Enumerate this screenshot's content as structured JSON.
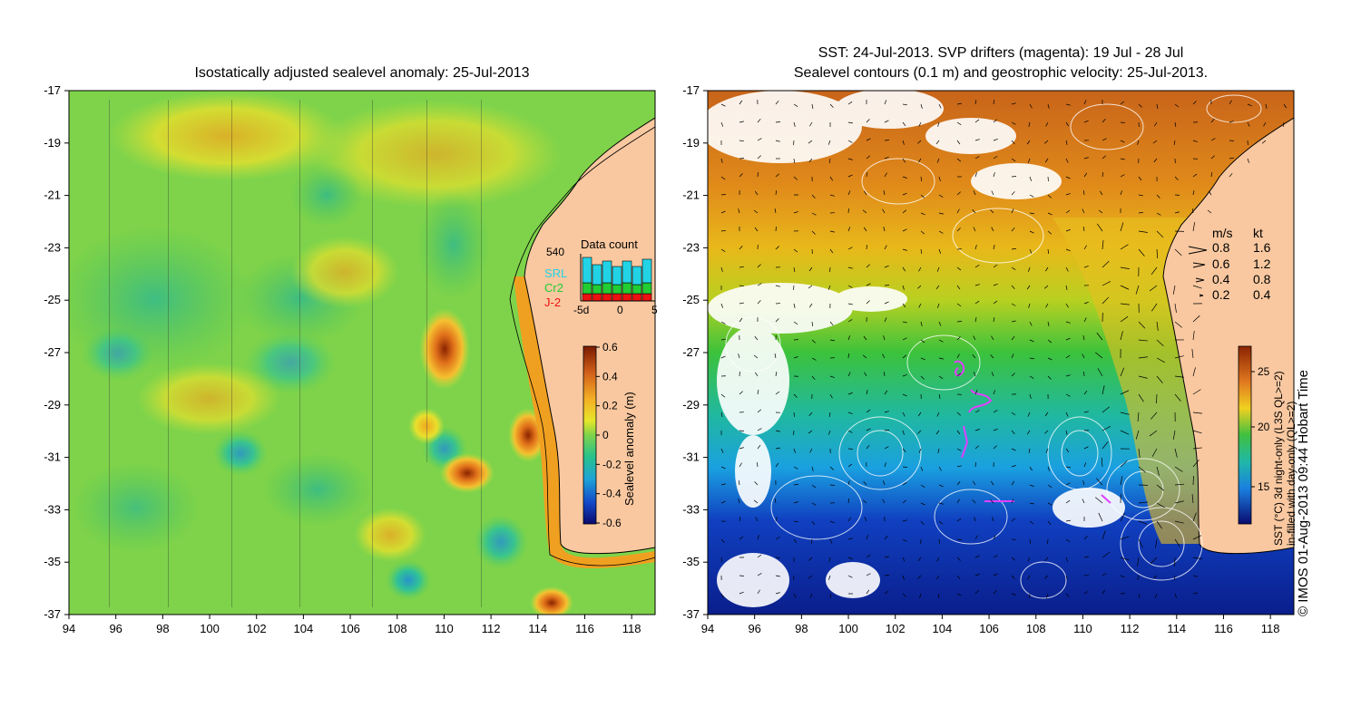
{
  "left_panel": {
    "title": "Isostatically adjusted sealevel anomaly: 25-Jul-2013",
    "x_ticks": [
      "94",
      "96",
      "98",
      "100",
      "102",
      "104",
      "106",
      "108",
      "110",
      "112",
      "114",
      "116",
      "118"
    ],
    "y_ticks": [
      "-17",
      "-19",
      "-21",
      "-23",
      "-25",
      "-27",
      "-29",
      "-31",
      "-33",
      "-35",
      "-37"
    ],
    "colorbar": {
      "label": "Sealevel anomaly (m)",
      "ticks": [
        "0.6",
        "0.4",
        "0.2",
        "0",
        "-0.2",
        "-0.4",
        "-0.6"
      ]
    },
    "data_count": {
      "title": "Data count",
      "max_label": "540",
      "legend": [
        {
          "label": "SRL",
          "color": "#22d3e6"
        },
        {
          "label": "Cr2",
          "color": "#22cc33"
        },
        {
          "label": "J-2",
          "color": "#ee1111"
        }
      ],
      "x_ticks": [
        "-5d",
        "0",
        "5"
      ]
    }
  },
  "right_panel": {
    "title_line1": "SST: 24-Jul-2013. SVP drifters (magenta): 19 Jul - 28 Jul",
    "title_line2": "Sealevel contours (0.1 m) and geostrophic velocity: 25-Jul-2013.",
    "x_ticks": [
      "94",
      "96",
      "98",
      "100",
      "102",
      "104",
      "106",
      "108",
      "110",
      "112",
      "114",
      "116",
      "118"
    ],
    "y_ticks": [
      "-17",
      "-19",
      "-21",
      "-23",
      "-25",
      "-27",
      "-29",
      "-31",
      "-33",
      "-35",
      "-37"
    ],
    "speed_legend": {
      "header": [
        "m/s",
        "kt"
      ],
      "rows": [
        [
          "0.8",
          "1.6"
        ],
        [
          "0.6",
          "1.2"
        ],
        [
          "0.4",
          "0.8"
        ],
        [
          "0.2",
          "0.4"
        ]
      ]
    },
    "colorbar": {
      "label_line1": "SST (°C) 3d night-only (L3S QL>=2)",
      "label_line2": "in-filled with day-only (QL>=2)",
      "ticks": [
        "25",
        "20",
        "15"
      ]
    },
    "credit": "© IMOS 01-Aug-2013 09:44 Hobart Time"
  },
  "colors": {
    "land": "#f9c8a0",
    "ssa_background": "#7ed34a",
    "sst_warm": "#c8641a",
    "sst_mid": "#3cc23c",
    "sst_cold": "#0a1e8c"
  }
}
